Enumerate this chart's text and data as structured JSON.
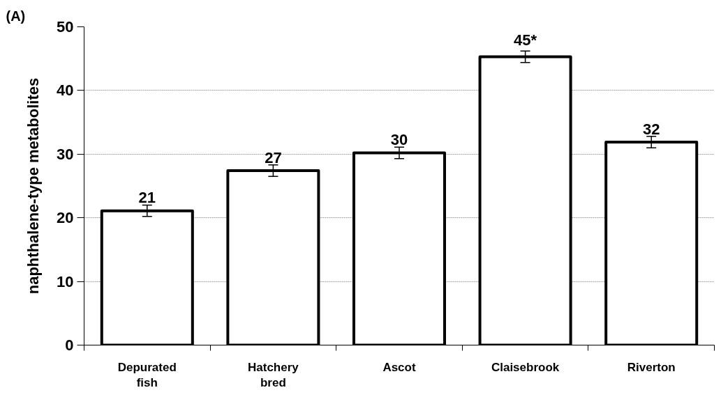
{
  "chart_data": {
    "type": "bar",
    "ylabel": "naphthalene-type metabolites",
    "annotations": [
      "(A)"
    ],
    "categories": [
      "Depurated fish",
      "Hatchery bred",
      "Ascot",
      "Claisebrook",
      "Riverton"
    ],
    "values": [
      21.1,
      27.4,
      30.2,
      45.3,
      31.9
    ],
    "errors": [
      0.9,
      0.9,
      0.9,
      0.9,
      0.9
    ],
    "value_labels": [
      "21",
      "27",
      "30",
      "45*",
      "32"
    ],
    "color": "#ffffff",
    "ylim": [
      0,
      50
    ],
    "yticks": [
      0,
      10,
      20,
      30,
      40,
      50
    ],
    "grid": "y"
  }
}
